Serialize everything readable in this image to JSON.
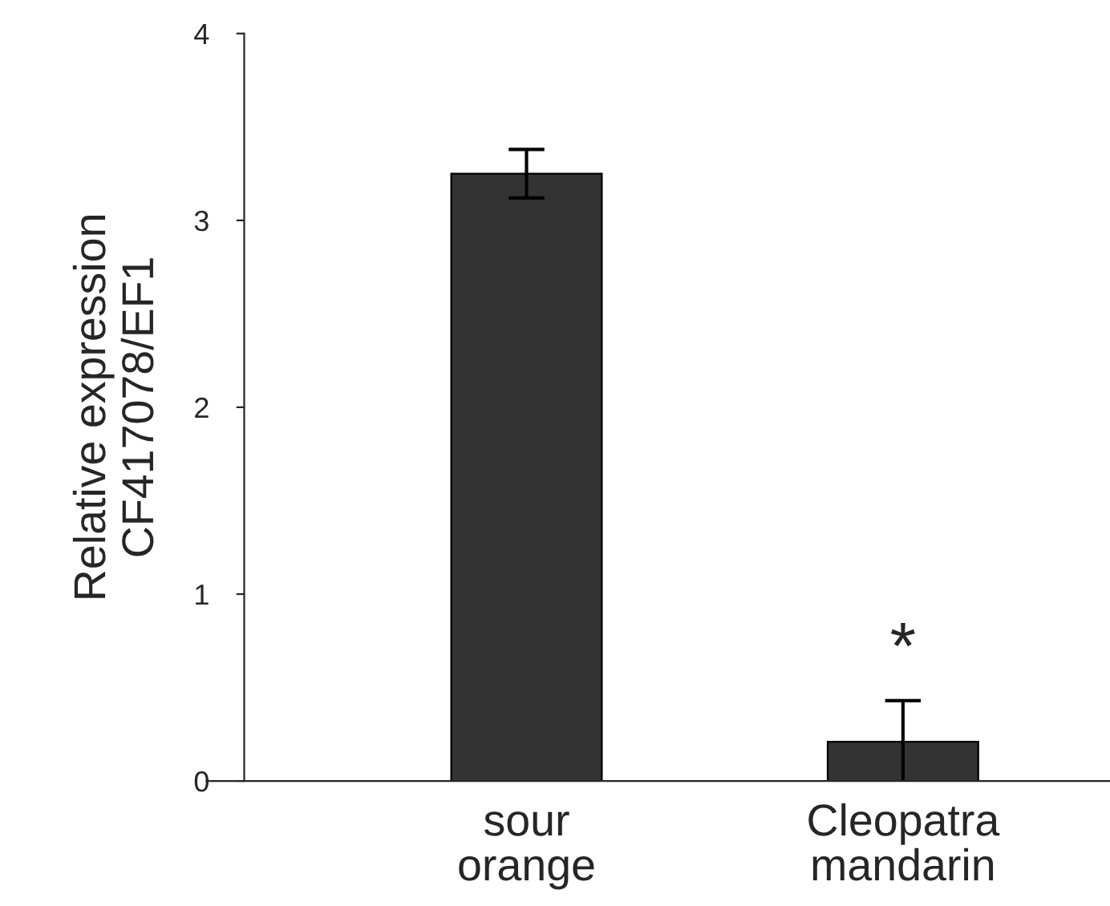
{
  "chart_data": {
    "type": "bar",
    "ylabel": "Relative expression\nCF417078/EF1",
    "categories": [
      "sour\norange",
      "Cleopatra\nmandarin"
    ],
    "series": [
      {
        "color": "#333333",
        "values": [
          3.25,
          0.21
        ],
        "errors": [
          0.13,
          0.22
        ]
      }
    ],
    "ylim": [
      0,
      4
    ],
    "yticks": [
      0,
      1,
      2,
      3,
      4
    ],
    "grid": false,
    "annotations": [
      "*"
    ]
  }
}
